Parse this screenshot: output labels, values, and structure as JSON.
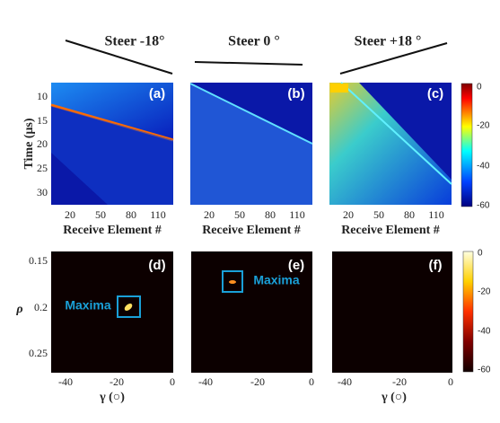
{
  "steer_labels": [
    "Steer  -18°",
    "Steer 0 °",
    "Steer +18 °"
  ],
  "panels": [
    "(a)",
    "(b)",
    "(c)",
    "(d)",
    "(e)",
    "(f)"
  ],
  "top_row": {
    "y_label": "Time (μs)",
    "y_ticks": [
      "10",
      "15",
      "20",
      "25",
      "30"
    ],
    "x_label": "Receive Element #",
    "x_ticks": [
      "20",
      "50",
      "80",
      "110"
    ],
    "colorbar_ticks": [
      "0",
      "-20",
      "-40",
      "-60"
    ]
  },
  "bottom_row": {
    "y_label": "ρ",
    "y_ticks": [
      "0.15",
      "0.2",
      "0.25"
    ],
    "x_label": "γ (○)",
    "x_ticks": [
      "-40",
      "-20",
      "0"
    ],
    "colorbar_ticks": [
      "0",
      "-20",
      "-40",
      "-60"
    ],
    "annotations": [
      "Maxima",
      "Maxima"
    ]
  }
}
